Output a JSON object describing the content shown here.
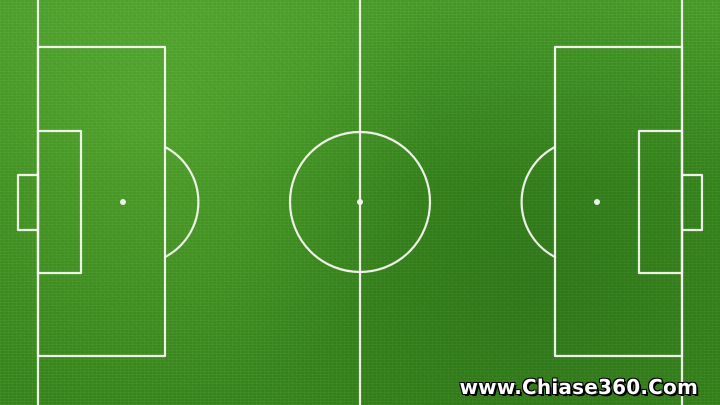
{
  "image": {
    "watermark": "www.Chiase360.Com"
  },
  "colors": {
    "grass": "#3f8f1f",
    "lines": "#f7f7f2",
    "watermark": "#ffffff"
  }
}
